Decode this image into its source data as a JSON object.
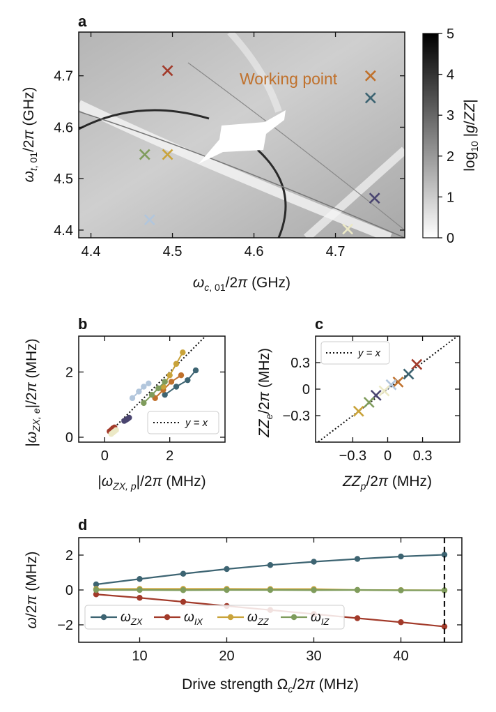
{
  "chart_data": [
    {
      "panel": "a",
      "type": "heatmap",
      "xlabel": "ω_c,01/2π (GHz)",
      "ylabel": "ω_t,01/2π (GHz)",
      "xlim": [
        4.385,
        4.785
      ],
      "ylim": [
        4.385,
        4.785
      ],
      "xticks": [
        "4.4",
        "4.5",
        "4.6",
        "4.7"
      ],
      "yticks": [
        "4.4",
        "4.5",
        "4.6",
        "4.7"
      ],
      "colorbar": {
        "label": "log10 |g/ZZ|",
        "range": [
          0,
          5
        ],
        "ticks": [
          "0",
          "1",
          "2",
          "3",
          "4",
          "5"
        ]
      },
      "annotation": "Working point",
      "markers": [
        {
          "x": 4.494,
          "y": 4.71,
          "color": "#a23a2a"
        },
        {
          "x": 4.743,
          "y": 4.7,
          "color": "#c0712c"
        },
        {
          "x": 4.743,
          "y": 4.657,
          "color": "#3d6472"
        },
        {
          "x": 4.466,
          "y": 4.547,
          "color": "#7f9c5c"
        },
        {
          "x": 4.494,
          "y": 4.547,
          "color": "#c9a33a"
        },
        {
          "x": 4.748,
          "y": 4.462,
          "color": "#4a4570"
        },
        {
          "x": 4.472,
          "y": 4.42,
          "color": "#b2c6dc"
        },
        {
          "x": 4.715,
          "y": 4.402,
          "color": "#ece9c6"
        }
      ]
    },
    {
      "panel": "b",
      "type": "scatter",
      "xlabel": "|ω_ZX,p|/2π (MHz)",
      "ylabel": "|ω_ZX,e|/2π (MHz)",
      "xlim": [
        -0.8,
        3.7
      ],
      "ylim": [
        -0.15,
        3.1
      ],
      "xticks": [
        "0",
        "2"
      ],
      "yticks": [
        "0",
        "2"
      ],
      "legend": "y = x",
      "series": [
        {
          "color": "#3d6472",
          "x": [
            1.85,
            2.2,
            2.55,
            2.8
          ],
          "y": [
            1.3,
            1.55,
            1.75,
            2.05
          ]
        },
        {
          "color": "#c0712c",
          "x": [
            1.55,
            1.8,
            2.05,
            2.35
          ],
          "y": [
            1.2,
            1.45,
            1.7,
            1.9
          ]
        },
        {
          "color": "#c9a33a",
          "x": [
            1.8,
            2.0,
            2.2,
            2.4
          ],
          "y": [
            1.55,
            1.9,
            2.25,
            2.6
          ]
        },
        {
          "color": "#7f9c5c",
          "x": [
            1.2,
            1.45,
            1.65,
            1.85
          ],
          "y": [
            1.05,
            1.3,
            1.5,
            1.7
          ]
        },
        {
          "color": "#b2c6dc",
          "x": [
            0.85,
            1.05,
            1.2,
            1.35
          ],
          "y": [
            1.2,
            1.4,
            1.55,
            1.65
          ]
        },
        {
          "color": "#4a4570",
          "x": [
            0.6,
            0.65,
            0.7,
            0.75
          ],
          "y": [
            0.5,
            0.53,
            0.56,
            0.6
          ]
        },
        {
          "color": "#a23a2a",
          "x": [
            0.15,
            0.2,
            0.25,
            0.3
          ],
          "y": [
            0.18,
            0.22,
            0.27,
            0.3
          ]
        },
        {
          "color": "#ece9c6",
          "x": [
            0.2,
            0.25,
            0.3,
            0.35
          ],
          "y": [
            0.1,
            0.14,
            0.18,
            0.22
          ]
        }
      ]
    },
    {
      "panel": "c",
      "type": "scatter",
      "xlabel": "ZZ_p/2π (MHz)",
      "ylabel": "ZZ_e/2π (MHz)",
      "xlim": [
        -0.62,
        0.62
      ],
      "ylim": [
        -0.6,
        0.6
      ],
      "xticks": [
        "-0.3",
        "0",
        "0.3"
      ],
      "yticks": [
        "-0.3",
        "0",
        "0.3"
      ],
      "legend": "y = x",
      "points": [
        {
          "x": 0.25,
          "y": 0.28,
          "color": "#a23a2a"
        },
        {
          "x": 0.18,
          "y": 0.17,
          "color": "#3d6472"
        },
        {
          "x": 0.09,
          "y": 0.08,
          "color": "#c0712c"
        },
        {
          "x": 0.03,
          "y": 0.05,
          "color": "#b2c6dc"
        },
        {
          "x": -0.03,
          "y": -0.02,
          "color": "#ece9c6"
        },
        {
          "x": -0.1,
          "y": -0.07,
          "color": "#4a4570"
        },
        {
          "x": -0.16,
          "y": -0.15,
          "color": "#7f9c5c"
        },
        {
          "x": -0.25,
          "y": -0.25,
          "color": "#c9a33a"
        }
      ]
    },
    {
      "panel": "d",
      "type": "line",
      "xlabel": "Drive strength Ω_c/2π (MHz)",
      "ylabel": "ω/2π (MHz)",
      "xlim": [
        3,
        47
      ],
      "ylim": [
        -3,
        3
      ],
      "xticks": [
        "10",
        "20",
        "30",
        "40"
      ],
      "yticks": [
        "-2",
        "0",
        "2"
      ],
      "vline": 45,
      "x": [
        5,
        10,
        15,
        20,
        25,
        30,
        35,
        40,
        45
      ],
      "series": [
        {
          "name": "ω_ZX",
          "color": "#3d6472",
          "values": [
            0.32,
            0.63,
            0.93,
            1.2,
            1.43,
            1.62,
            1.78,
            1.92,
            2.02
          ]
        },
        {
          "name": "ω_IX",
          "color": "#a23a2a",
          "values": [
            -0.25,
            -0.45,
            -0.68,
            -0.92,
            -1.15,
            -1.38,
            -1.62,
            -1.85,
            -2.1
          ]
        },
        {
          "name": "ω_ZZ",
          "color": "#c9a33a",
          "values": [
            0.05,
            0.06,
            0.06,
            0.06,
            0.05,
            0.05,
            0.0,
            -0.01,
            -0.02
          ]
        },
        {
          "name": "ω_IZ",
          "color": "#7f9c5c",
          "values": [
            0.0,
            0.0,
            -0.01,
            0.0,
            0.0,
            -0.01,
            0.0,
            -0.02,
            -0.02
          ]
        }
      ]
    }
  ]
}
